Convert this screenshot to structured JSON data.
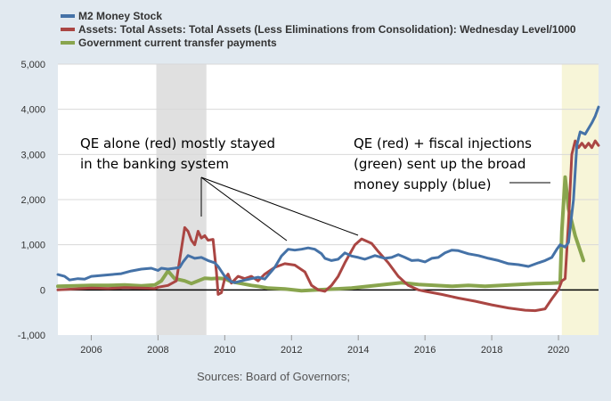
{
  "chart_data": {
    "type": "line",
    "title": "",
    "xlabel": "",
    "ylabel": "",
    "xlim": [
      2005.0,
      2021.2
    ],
    "ylim": [
      -1000,
      5000
    ],
    "yticks": [
      -1000,
      0,
      1000,
      2000,
      3000,
      4000,
      5000
    ],
    "ytick_labels": [
      "-1,000",
      "0",
      "1,000",
      "2,000",
      "3,000",
      "4,000",
      "5,000"
    ],
    "xticks": [
      2006,
      2008,
      2010,
      2012,
      2014,
      2016,
      2018,
      2020
    ],
    "xtick_labels": [
      "2006",
      "2008",
      "2010",
      "2012",
      "2014",
      "2016",
      "2018",
      "2020"
    ],
    "shaded_regions": [
      {
        "name": "recession-2008",
        "start": 2007.95,
        "end": 2009.45,
        "color": "#e0e0e0"
      },
      {
        "name": "covid-2020",
        "start": 2020.1,
        "end": 2021.2,
        "color": "#f7f5d8"
      }
    ],
    "series": [
      {
        "name": "M2 Money Stock",
        "color": "#4572a7",
        "points": [
          [
            2005.0,
            340
          ],
          [
            2005.2,
            300
          ],
          [
            2005.35,
            220
          ],
          [
            2005.6,
            250
          ],
          [
            2005.8,
            240
          ],
          [
            2006.0,
            300
          ],
          [
            2006.3,
            320
          ],
          [
            2006.6,
            340
          ],
          [
            2006.9,
            360
          ],
          [
            2007.2,
            420
          ],
          [
            2007.5,
            460
          ],
          [
            2007.8,
            480
          ],
          [
            2008.0,
            430
          ],
          [
            2008.1,
            480
          ],
          [
            2008.3,
            460
          ],
          [
            2008.5,
            480
          ],
          [
            2008.65,
            500
          ],
          [
            2008.75,
            620
          ],
          [
            2008.9,
            760
          ],
          [
            2009.1,
            700
          ],
          [
            2009.3,
            720
          ],
          [
            2009.5,
            650
          ],
          [
            2009.7,
            600
          ],
          [
            2009.8,
            520
          ],
          [
            2010.0,
            300
          ],
          [
            2010.2,
            180
          ],
          [
            2010.3,
            160
          ],
          [
            2010.5,
            200
          ],
          [
            2010.8,
            250
          ],
          [
            2011.0,
            280
          ],
          [
            2011.2,
            240
          ],
          [
            2011.5,
            500
          ],
          [
            2011.7,
            750
          ],
          [
            2011.9,
            900
          ],
          [
            2012.1,
            880
          ],
          [
            2012.3,
            900
          ],
          [
            2012.5,
            930
          ],
          [
            2012.7,
            900
          ],
          [
            2012.9,
            800
          ],
          [
            2013.0,
            700
          ],
          [
            2013.2,
            650
          ],
          [
            2013.4,
            680
          ],
          [
            2013.6,
            820
          ],
          [
            2013.8,
            750
          ],
          [
            2014.0,
            720
          ],
          [
            2014.2,
            680
          ],
          [
            2014.5,
            760
          ],
          [
            2014.8,
            700
          ],
          [
            2015.0,
            720
          ],
          [
            2015.2,
            780
          ],
          [
            2015.4,
            720
          ],
          [
            2015.6,
            650
          ],
          [
            2015.8,
            660
          ],
          [
            2016.0,
            620
          ],
          [
            2016.2,
            700
          ],
          [
            2016.4,
            720
          ],
          [
            2016.6,
            820
          ],
          [
            2016.8,
            880
          ],
          [
            2017.0,
            870
          ],
          [
            2017.3,
            800
          ],
          [
            2017.6,
            760
          ],
          [
            2017.9,
            700
          ],
          [
            2018.2,
            650
          ],
          [
            2018.5,
            580
          ],
          [
            2018.8,
            560
          ],
          [
            2019.1,
            520
          ],
          [
            2019.4,
            600
          ],
          [
            2019.6,
            650
          ],
          [
            2019.8,
            720
          ],
          [
            2019.95,
            900
          ],
          [
            2020.05,
            1000
          ],
          [
            2020.2,
            950
          ],
          [
            2020.3,
            1050
          ],
          [
            2020.45,
            2000
          ],
          [
            2020.55,
            3200
          ],
          [
            2020.65,
            3500
          ],
          [
            2020.8,
            3450
          ],
          [
            2021.0,
            3700
          ],
          [
            2021.1,
            3850
          ],
          [
            2021.2,
            4050
          ]
        ]
      },
      {
        "name": "Assets: Total Assets: Total Assets (Less Eliminations from Consolidation): Wednesday Level/1000",
        "color": "#aa4643",
        "points": [
          [
            2005.0,
            0
          ],
          [
            2005.5,
            20
          ],
          [
            2006.0,
            40
          ],
          [
            2006.5,
            30
          ],
          [
            2007.0,
            50
          ],
          [
            2007.5,
            40
          ],
          [
            2007.9,
            30
          ],
          [
            2008.0,
            60
          ],
          [
            2008.3,
            100
          ],
          [
            2008.55,
            200
          ],
          [
            2008.7,
            900
          ],
          [
            2008.8,
            1380
          ],
          [
            2008.9,
            1300
          ],
          [
            2009.0,
            1100
          ],
          [
            2009.1,
            1000
          ],
          [
            2009.2,
            1300
          ],
          [
            2009.3,
            1150
          ],
          [
            2009.4,
            1200
          ],
          [
            2009.5,
            1100
          ],
          [
            2009.65,
            1120
          ],
          [
            2009.75,
            400
          ],
          [
            2009.8,
            -100
          ],
          [
            2009.9,
            -60
          ],
          [
            2010.0,
            250
          ],
          [
            2010.1,
            350
          ],
          [
            2010.2,
            150
          ],
          [
            2010.4,
            300
          ],
          [
            2010.6,
            250
          ],
          [
            2010.8,
            300
          ],
          [
            2011.0,
            200
          ],
          [
            2011.2,
            350
          ],
          [
            2011.5,
            500
          ],
          [
            2011.8,
            580
          ],
          [
            2012.1,
            550
          ],
          [
            2012.4,
            400
          ],
          [
            2012.6,
            100
          ],
          [
            2012.8,
            0
          ],
          [
            2013.0,
            -30
          ],
          [
            2013.2,
            100
          ],
          [
            2013.4,
            300
          ],
          [
            2013.6,
            600
          ],
          [
            2013.9,
            1000
          ],
          [
            2014.1,
            1130
          ],
          [
            2014.4,
            1030
          ],
          [
            2014.6,
            850
          ],
          [
            2014.9,
            600
          ],
          [
            2015.2,
            300
          ],
          [
            2015.5,
            100
          ],
          [
            2015.8,
            0
          ],
          [
            2016.0,
            -30
          ],
          [
            2016.5,
            -100
          ],
          [
            2017.0,
            -180
          ],
          [
            2017.5,
            -250
          ],
          [
            2018.0,
            -330
          ],
          [
            2018.5,
            -400
          ],
          [
            2019.0,
            -450
          ],
          [
            2019.3,
            -460
          ],
          [
            2019.6,
            -420
          ],
          [
            2019.8,
            -200
          ],
          [
            2020.0,
            0
          ],
          [
            2020.1,
            200
          ],
          [
            2020.2,
            250
          ],
          [
            2020.3,
            1500
          ],
          [
            2020.4,
            3000
          ],
          [
            2020.5,
            3300
          ],
          [
            2020.6,
            3150
          ],
          [
            2020.7,
            3250
          ],
          [
            2020.8,
            3150
          ],
          [
            2020.9,
            3250
          ],
          [
            2021.0,
            3150
          ],
          [
            2021.1,
            3300
          ],
          [
            2021.2,
            3200
          ]
        ]
      },
      {
        "name": "Government current transfer payments",
        "color": "#89a54e",
        "points": [
          [
            2005.0,
            80
          ],
          [
            2005.5,
            90
          ],
          [
            2006.0,
            100
          ],
          [
            2006.5,
            100
          ],
          [
            2007.0,
            110
          ],
          [
            2007.5,
            90
          ],
          [
            2007.9,
            110
          ],
          [
            2008.1,
            200
          ],
          [
            2008.3,
            420
          ],
          [
            2008.5,
            250
          ],
          [
            2008.8,
            200
          ],
          [
            2009.0,
            140
          ],
          [
            2009.2,
            200
          ],
          [
            2009.4,
            260
          ],
          [
            2009.6,
            250
          ],
          [
            2009.8,
            260
          ],
          [
            2010.0,
            250
          ],
          [
            2010.2,
            180
          ],
          [
            2010.5,
            140
          ],
          [
            2010.8,
            100
          ],
          [
            2011.0,
            80
          ],
          [
            2011.3,
            40
          ],
          [
            2011.8,
            20
          ],
          [
            2012.3,
            -20
          ],
          [
            2012.8,
            0
          ],
          [
            2013.3,
            20
          ],
          [
            2013.8,
            40
          ],
          [
            2014.3,
            80
          ],
          [
            2014.8,
            120
          ],
          [
            2015.3,
            160
          ],
          [
            2015.8,
            120
          ],
          [
            2016.3,
            100
          ],
          [
            2016.8,
            80
          ],
          [
            2017.3,
            100
          ],
          [
            2017.8,
            80
          ],
          [
            2018.3,
            100
          ],
          [
            2018.8,
            120
          ],
          [
            2019.3,
            140
          ],
          [
            2019.8,
            150
          ],
          [
            2020.05,
            160
          ],
          [
            2020.1,
            1300
          ],
          [
            2020.2,
            2500
          ],
          [
            2020.3,
            1800
          ],
          [
            2020.5,
            1200
          ],
          [
            2020.75,
            650
          ]
        ]
      }
    ],
    "annotations": [
      {
        "name": "qe-alone-note",
        "lines": [
          "QE alone (red) mostly stayed",
          "in the banking system"
        ]
      },
      {
        "name": "qe-fiscal-note",
        "lines": [
          "QE (red) + fiscal injections",
          "(green) sent up the broad",
          "money supply (blue)"
        ]
      }
    ],
    "source": "Sources: Board of Governors;"
  }
}
